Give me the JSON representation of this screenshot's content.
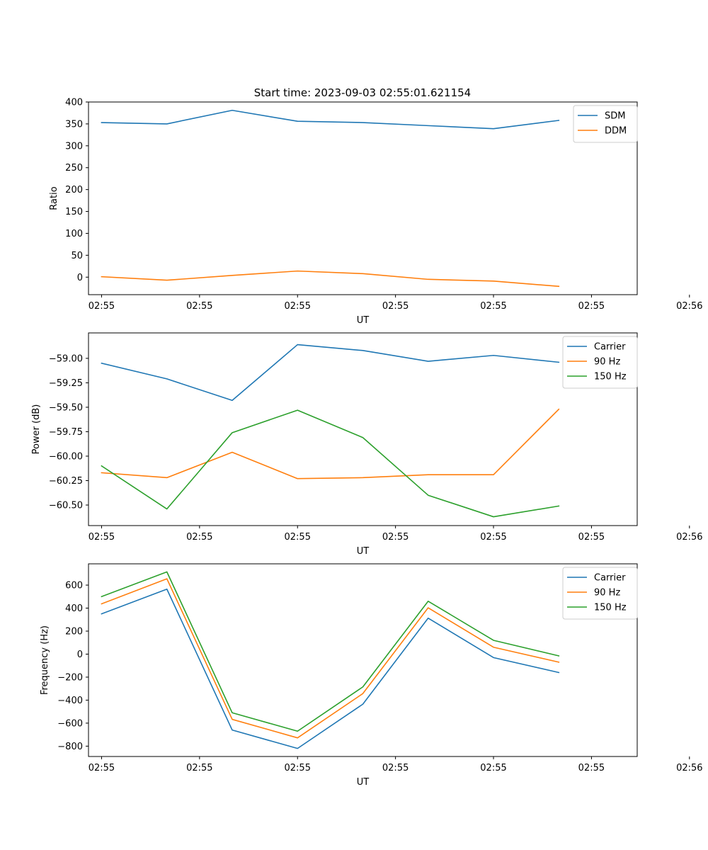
{
  "figure_title": "Start time: 2023-09-03 02:55:01.621154",
  "colors": {
    "c0": "#1f77b4",
    "c1": "#ff7f0e",
    "c2": "#2ca02c"
  },
  "chart_data": [
    {
      "type": "line",
      "title": "Start time: 2023-09-03 02:55:01.621154",
      "xlabel": "UT",
      "ylabel": "Ratio",
      "x": [
        1,
        2,
        3,
        4,
        5,
        6,
        7,
        8
      ],
      "xlim": [
        0.8,
        9.2
      ],
      "xticks": [
        1,
        2.5,
        4,
        5.5,
        7,
        8.5,
        10
      ],
      "xticklabels": [
        "02:55",
        "02:55",
        "02:55",
        "02:55",
        "02:55",
        "02:55",
        "02:56"
      ],
      "ylim": [
        -40,
        400
      ],
      "yticks": [
        0,
        50,
        100,
        150,
        200,
        250,
        300,
        350,
        400
      ],
      "yticklabels": [
        "0",
        "50",
        "100",
        "150",
        "200",
        "250",
        "300",
        "350",
        "400"
      ],
      "legend_position": "upper right",
      "grid": false,
      "series": [
        {
          "name": "SDM",
          "color": "#1f77b4",
          "values": [
            353,
            350,
            381,
            356,
            353,
            346,
            339,
            358
          ]
        },
        {
          "name": "DDM",
          "color": "#ff7f0e",
          "values": [
            1,
            -7,
            4,
            14,
            8,
            -5,
            -9,
            -21
          ]
        }
      ]
    },
    {
      "type": "line",
      "title": "",
      "xlabel": "UT",
      "ylabel": "Power (dB)",
      "x": [
        1,
        2,
        3,
        4,
        5,
        6,
        7,
        8
      ],
      "xlim": [
        0.8,
        9.2
      ],
      "xticks": [
        1,
        2.5,
        4,
        5.5,
        7,
        8.5,
        10
      ],
      "xticklabels": [
        "02:55",
        "02:55",
        "02:55",
        "02:55",
        "02:55",
        "02:55",
        "02:56"
      ],
      "ylim": [
        -60.71,
        -58.74
      ],
      "yticks": [
        -59.0,
        -59.25,
        -59.5,
        -59.75,
        -60.0,
        -60.25,
        -60.5
      ],
      "yticklabels": [
        "−59.00",
        "−59.25",
        "−59.50",
        "−59.75",
        "−60.00",
        "−60.25",
        "−60.50"
      ],
      "legend_position": "upper right",
      "grid": false,
      "series": [
        {
          "name": "Carrier",
          "color": "#1f77b4",
          "values": [
            -59.05,
            -59.21,
            -59.43,
            -58.86,
            -58.92,
            -59.03,
            -58.97,
            -59.04
          ]
        },
        {
          "name": "90 Hz",
          "color": "#ff7f0e",
          "values": [
            -60.17,
            -60.22,
            -59.96,
            -60.23,
            -60.22,
            -60.19,
            -60.19,
            -59.52
          ]
        },
        {
          "name": "150 Hz",
          "color": "#2ca02c",
          "values": [
            -60.1,
            -60.54,
            -59.76,
            -59.53,
            -59.81,
            -60.4,
            -60.62,
            -60.51
          ]
        }
      ]
    },
    {
      "type": "line",
      "title": "",
      "xlabel": "UT",
      "ylabel": "Frequency (Hz)",
      "x": [
        1,
        2,
        3,
        4,
        5,
        6,
        7,
        8
      ],
      "xlim": [
        0.8,
        9.2
      ],
      "xticks": [
        1,
        2.5,
        4,
        5.5,
        7,
        8.5,
        10
      ],
      "xticklabels": [
        "02:55",
        "02:55",
        "02:55",
        "02:55",
        "02:55",
        "02:55",
        "02:56"
      ],
      "ylim": [
        -890,
        785
      ],
      "yticks": [
        600,
        400,
        200,
        0,
        -200,
        -400,
        -600,
        -800
      ],
      "yticklabels": [
        "600",
        "400",
        "200",
        "0",
        "−200",
        "−400",
        "−600",
        "−800"
      ],
      "legend_position": "upper right",
      "grid": false,
      "series": [
        {
          "name": "Carrier",
          "color": "#1f77b4",
          "values": [
            350,
            565,
            -660,
            -820,
            -435,
            313,
            -30,
            -160
          ]
        },
        {
          "name": "90 Hz",
          "color": "#ff7f0e",
          "values": [
            437,
            655,
            -567,
            -728,
            -343,
            403,
            60,
            -70
          ]
        },
        {
          "name": "150 Hz",
          "color": "#2ca02c",
          "values": [
            500,
            715,
            -510,
            -670,
            -285,
            460,
            120,
            -15
          ]
        }
      ]
    }
  ]
}
